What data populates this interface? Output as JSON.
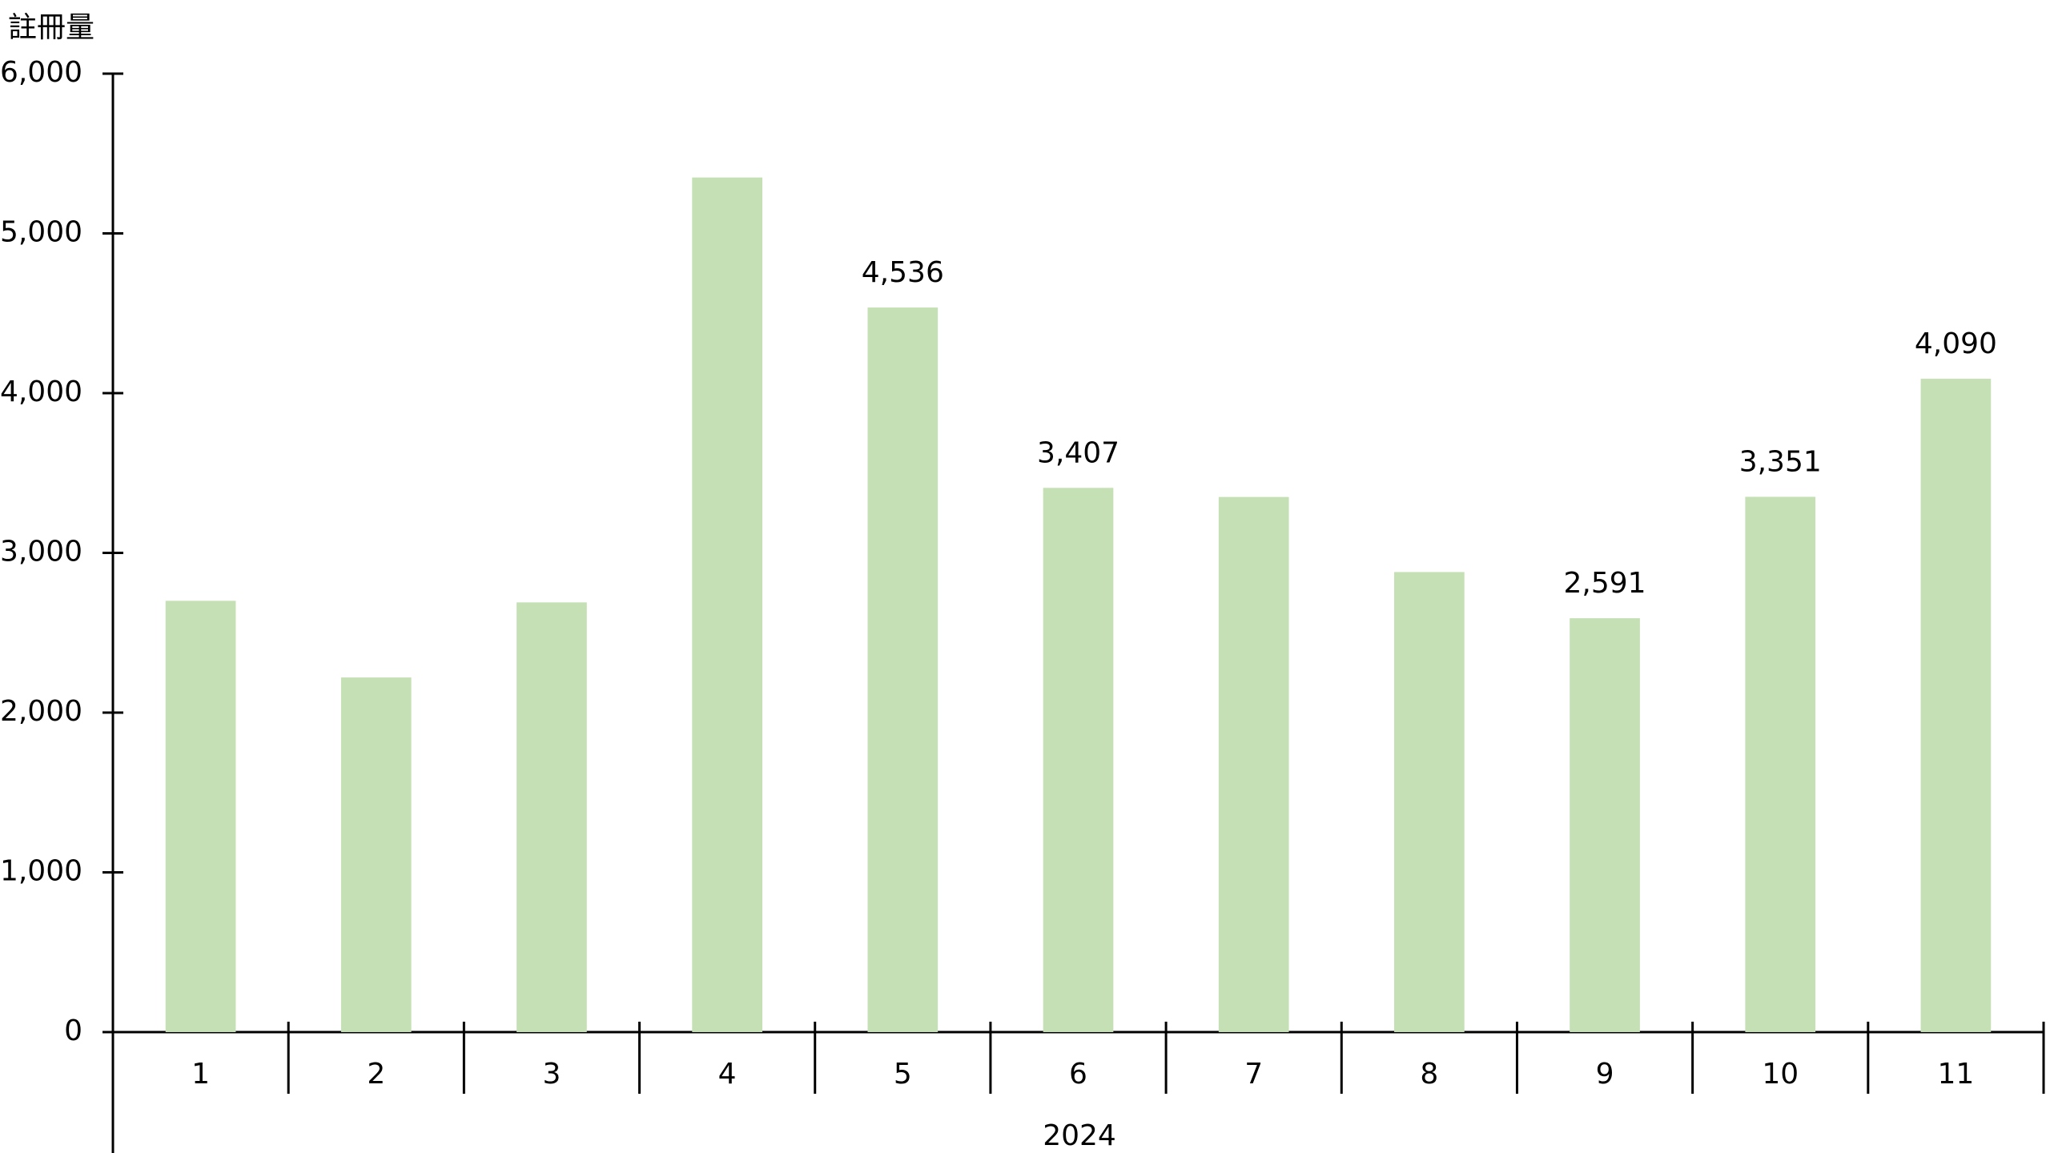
{
  "chart_data": {
    "type": "bar",
    "y_label": "註冊量",
    "x_group_label": "2024",
    "categories": [
      "1",
      "2",
      "3",
      "4",
      "5",
      "6",
      "7",
      "8",
      "9",
      "10",
      "11"
    ],
    "values": [
      2700,
      2220,
      2690,
      5350,
      4536,
      3407,
      3350,
      2880,
      2591,
      3351,
      4090
    ],
    "value_labels": [
      null,
      null,
      null,
      null,
      "4,536",
      "3,407",
      null,
      null,
      "2,591",
      "3,351",
      "4,090"
    ],
    "color": "#c5e0b4",
    "ylim": [
      0,
      6000
    ],
    "yticks": [
      0,
      {
        "value": 1000,
        "label": "1,000"
      },
      {
        "value": 2000,
        "label": "2,000"
      },
      {
        "value": 3000,
        "label": "3,000"
      },
      {
        "value": 4000,
        "label": "4,000"
      },
      {
        "value": 5000,
        "label": "5,000"
      },
      {
        "value": 6000,
        "label": "6,000"
      }
    ],
    "grid": false
  }
}
